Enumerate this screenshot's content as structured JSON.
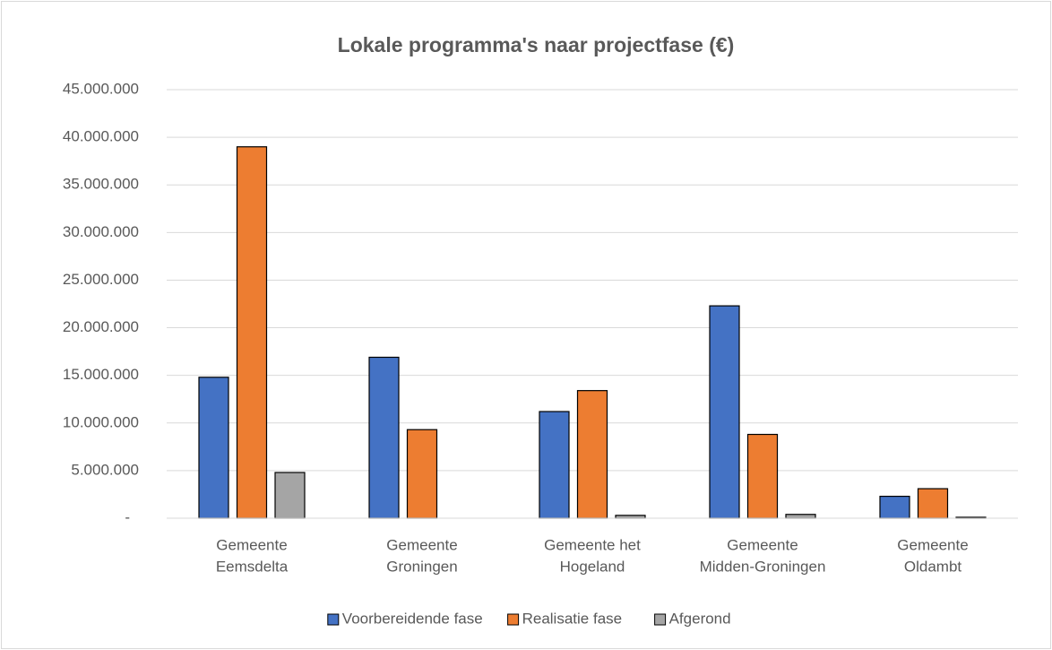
{
  "chart_data": {
    "type": "bar",
    "title": "Lokale programma's naar projectfase (€)",
    "categories": [
      [
        "Gemeente",
        "Eemsdelta"
      ],
      [
        "Gemeente",
        "Groningen"
      ],
      [
        "Gemeente het",
        "Hogeland"
      ],
      [
        "Gemeente",
        "Midden-Groningen"
      ],
      [
        "Gemeente",
        "Oldambt"
      ]
    ],
    "series": [
      {
        "name": "Voorbereidende fase",
        "color": "#4472c4",
        "values": [
          14800000,
          16900000,
          11200000,
          22300000,
          2300000
        ]
      },
      {
        "name": "Realisatie fase",
        "color": "#ed7d31",
        "values": [
          39000000,
          9300000,
          13400000,
          8800000,
          3100000
        ]
      },
      {
        "name": "Afgerond",
        "color": "#a5a5a5",
        "values": [
          4800000,
          0,
          300000,
          400000,
          100000
        ]
      }
    ],
    "ylim": [
      0,
      45000000
    ],
    "yticks": [
      {
        "value": 0,
        "label": "-"
      },
      {
        "value": 5000000,
        "label": "5.000.000"
      },
      {
        "value": 10000000,
        "label": "10.000.000"
      },
      {
        "value": 15000000,
        "label": "15.000.000"
      },
      {
        "value": 20000000,
        "label": "20.000.000"
      },
      {
        "value": 25000000,
        "label": "25.000.000"
      },
      {
        "value": 30000000,
        "label": "30.000.000"
      },
      {
        "value": 35000000,
        "label": "35.000.000"
      },
      {
        "value": 40000000,
        "label": "40.000.000"
      },
      {
        "value": 45000000,
        "label": "45.000.000"
      }
    ],
    "grid": true,
    "legend": "bottom"
  }
}
